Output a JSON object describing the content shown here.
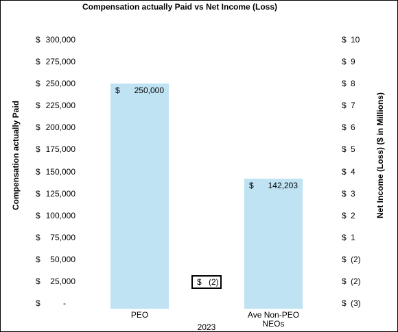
{
  "chart_data": {
    "type": "bar",
    "title": "Compensation actually Paid vs Net Income (Loss)",
    "ylabel_left": "Compensation actually Paid",
    "ylabel_right": "Net Income (Loss)   ($ in Millions)",
    "xlabel_center": "2023",
    "categories": [
      "PEO",
      "Ave Non-PEO\nNEOs"
    ],
    "values": [
      250000,
      142203
    ],
    "bar_labels": [
      {
        "currency": "$",
        "value": "250,000"
      },
      {
        "currency": "$",
        "value": "142,203"
      }
    ],
    "ylim_left": [
      0,
      300000
    ],
    "left_ticks": [
      {
        "currency": "$",
        "label": "300,000"
      },
      {
        "currency": "$",
        "label": "275,000"
      },
      {
        "currency": "$",
        "label": "250,000"
      },
      {
        "currency": "$",
        "label": "225,000"
      },
      {
        "currency": "$",
        "label": "200,000"
      },
      {
        "currency": "$",
        "label": "175,000"
      },
      {
        "currency": "$",
        "label": "150,000"
      },
      {
        "currency": "$",
        "label": "125,000"
      },
      {
        "currency": "$",
        "label": "100,000"
      },
      {
        "currency": "$",
        "label": "75,000"
      },
      {
        "currency": "$",
        "label": "50,000"
      },
      {
        "currency": "$",
        "label": "25,000"
      },
      {
        "currency": "$",
        "label": "-"
      }
    ],
    "right_ticks": [
      {
        "currency": "$",
        "label": "10"
      },
      {
        "currency": "$",
        "label": "9"
      },
      {
        "currency": "$",
        "label": "8"
      },
      {
        "currency": "$",
        "label": "7"
      },
      {
        "currency": "$",
        "label": "6"
      },
      {
        "currency": "$",
        "label": "5"
      },
      {
        "currency": "$",
        "label": "4"
      },
      {
        "currency": "$",
        "label": "3"
      },
      {
        "currency": "$",
        "label": "2"
      },
      {
        "currency": "$",
        "label": "1"
      },
      {
        "currency": "$",
        "label": "(2)"
      },
      {
        "currency": "$",
        "label": "(2)"
      },
      {
        "currency": "$",
        "label": "(3)"
      }
    ],
    "net_income": {
      "currency": "$",
      "label": "(2)",
      "value_millions": -2
    },
    "bar_color": "#bfe3f3",
    "grid": false,
    "legend": "none"
  }
}
